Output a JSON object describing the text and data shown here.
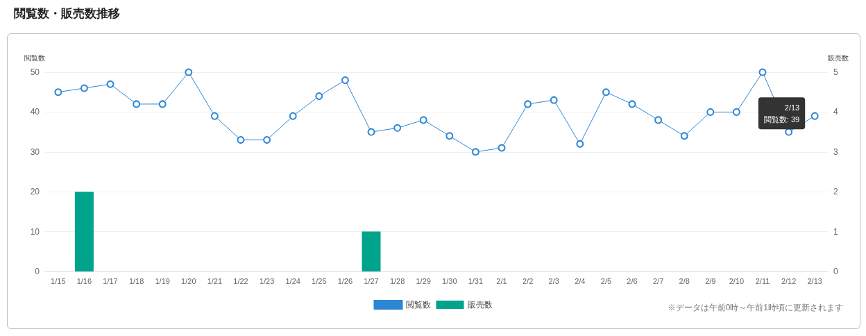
{
  "chart_data": {
    "type": "line",
    "title": "閲覧数・販売数推移",
    "ylabel": "閲覧数",
    "y2label": "販売数",
    "categories": [
      "1/15",
      "1/16",
      "1/17",
      "1/18",
      "1/19",
      "1/20",
      "1/21",
      "1/22",
      "1/23",
      "1/24",
      "1/25",
      "1/26",
      "1/27",
      "1/28",
      "1/29",
      "1/30",
      "1/31",
      "2/1",
      "2/2",
      "2/3",
      "2/4",
      "2/5",
      "2/6",
      "2/7",
      "2/8",
      "2/9",
      "2/10",
      "2/11",
      "2/12",
      "2/13"
    ],
    "series": [
      {
        "name": "閲覧数",
        "color": "#2d86d4",
        "values": [
          45,
          46,
          47,
          42,
          42,
          50,
          39,
          33,
          33,
          39,
          44,
          48,
          35,
          36,
          38,
          34,
          30,
          31,
          42,
          43,
          32,
          45,
          42,
          38,
          34,
          40,
          40,
          50,
          35,
          39
        ]
      },
      {
        "name": "販売数",
        "type": "bar",
        "axis": "y2",
        "color": "#00a38c",
        "values": [
          0,
          2,
          0,
          0,
          0,
          0,
          0,
          0,
          0,
          0,
          0,
          0,
          1,
          0,
          0,
          0,
          0,
          0,
          0,
          0,
          0,
          0,
          0,
          0,
          0,
          0,
          0,
          0,
          0,
          0
        ]
      }
    ],
    "ylim": [
      0,
      50
    ],
    "yticks": [
      0,
      10,
      20,
      30,
      40,
      50
    ],
    "y2lim": [
      0,
      5
    ],
    "y2ticks": [
      0,
      1,
      2,
      3,
      4,
      5
    ],
    "grid": "y",
    "legend": "bottom",
    "marker": "circle",
    "line_style": "solid",
    "annotations": [
      {
        "text": "2/13\n閲覧数: 39",
        "x": "2/13",
        "y": 39
      },
      "※データは午前0時～午前1時頃に更新されます"
    ]
  }
}
